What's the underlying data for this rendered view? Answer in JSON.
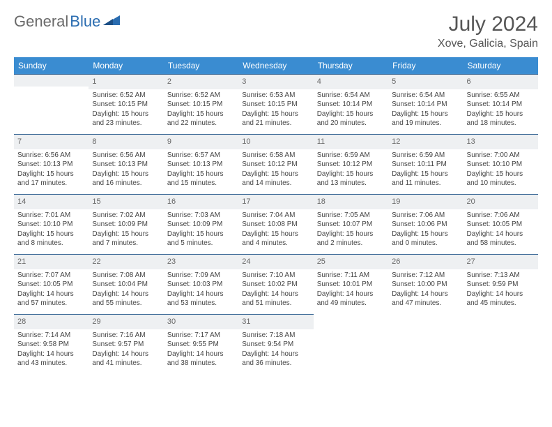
{
  "logo": {
    "text1": "General",
    "text2": "Blue",
    "brand_color": "#2a6cb0",
    "text_color": "#6a6a6a"
  },
  "title": "July 2024",
  "location": "Xove, Galicia, Spain",
  "header_bg": "#3a8cd1",
  "header_text_color": "#ffffff",
  "daynum_bg": "#eef0f2",
  "rule_color": "#2d5e8f",
  "weekdays": [
    "Sunday",
    "Monday",
    "Tuesday",
    "Wednesday",
    "Thursday",
    "Friday",
    "Saturday"
  ],
  "weeks": [
    [
      null,
      {
        "n": "1",
        "sr": "6:52 AM",
        "ss": "10:15 PM",
        "dl": "15 hours and 23 minutes."
      },
      {
        "n": "2",
        "sr": "6:52 AM",
        "ss": "10:15 PM",
        "dl": "15 hours and 22 minutes."
      },
      {
        "n": "3",
        "sr": "6:53 AM",
        "ss": "10:15 PM",
        "dl": "15 hours and 21 minutes."
      },
      {
        "n": "4",
        "sr": "6:54 AM",
        "ss": "10:14 PM",
        "dl": "15 hours and 20 minutes."
      },
      {
        "n": "5",
        "sr": "6:54 AM",
        "ss": "10:14 PM",
        "dl": "15 hours and 19 minutes."
      },
      {
        "n": "6",
        "sr": "6:55 AM",
        "ss": "10:14 PM",
        "dl": "15 hours and 18 minutes."
      }
    ],
    [
      {
        "n": "7",
        "sr": "6:56 AM",
        "ss": "10:13 PM",
        "dl": "15 hours and 17 minutes."
      },
      {
        "n": "8",
        "sr": "6:56 AM",
        "ss": "10:13 PM",
        "dl": "15 hours and 16 minutes."
      },
      {
        "n": "9",
        "sr": "6:57 AM",
        "ss": "10:13 PM",
        "dl": "15 hours and 15 minutes."
      },
      {
        "n": "10",
        "sr": "6:58 AM",
        "ss": "10:12 PM",
        "dl": "15 hours and 14 minutes."
      },
      {
        "n": "11",
        "sr": "6:59 AM",
        "ss": "10:12 PM",
        "dl": "15 hours and 13 minutes."
      },
      {
        "n": "12",
        "sr": "6:59 AM",
        "ss": "10:11 PM",
        "dl": "15 hours and 11 minutes."
      },
      {
        "n": "13",
        "sr": "7:00 AM",
        "ss": "10:10 PM",
        "dl": "15 hours and 10 minutes."
      }
    ],
    [
      {
        "n": "14",
        "sr": "7:01 AM",
        "ss": "10:10 PM",
        "dl": "15 hours and 8 minutes."
      },
      {
        "n": "15",
        "sr": "7:02 AM",
        "ss": "10:09 PM",
        "dl": "15 hours and 7 minutes."
      },
      {
        "n": "16",
        "sr": "7:03 AM",
        "ss": "10:09 PM",
        "dl": "15 hours and 5 minutes."
      },
      {
        "n": "17",
        "sr": "7:04 AM",
        "ss": "10:08 PM",
        "dl": "15 hours and 4 minutes."
      },
      {
        "n": "18",
        "sr": "7:05 AM",
        "ss": "10:07 PM",
        "dl": "15 hours and 2 minutes."
      },
      {
        "n": "19",
        "sr": "7:06 AM",
        "ss": "10:06 PM",
        "dl": "15 hours and 0 minutes."
      },
      {
        "n": "20",
        "sr": "7:06 AM",
        "ss": "10:05 PM",
        "dl": "14 hours and 58 minutes."
      }
    ],
    [
      {
        "n": "21",
        "sr": "7:07 AM",
        "ss": "10:05 PM",
        "dl": "14 hours and 57 minutes."
      },
      {
        "n": "22",
        "sr": "7:08 AM",
        "ss": "10:04 PM",
        "dl": "14 hours and 55 minutes."
      },
      {
        "n": "23",
        "sr": "7:09 AM",
        "ss": "10:03 PM",
        "dl": "14 hours and 53 minutes."
      },
      {
        "n": "24",
        "sr": "7:10 AM",
        "ss": "10:02 PM",
        "dl": "14 hours and 51 minutes."
      },
      {
        "n": "25",
        "sr": "7:11 AM",
        "ss": "10:01 PM",
        "dl": "14 hours and 49 minutes."
      },
      {
        "n": "26",
        "sr": "7:12 AM",
        "ss": "10:00 PM",
        "dl": "14 hours and 47 minutes."
      },
      {
        "n": "27",
        "sr": "7:13 AM",
        "ss": "9:59 PM",
        "dl": "14 hours and 45 minutes."
      }
    ],
    [
      {
        "n": "28",
        "sr": "7:14 AM",
        "ss": "9:58 PM",
        "dl": "14 hours and 43 minutes."
      },
      {
        "n": "29",
        "sr": "7:16 AM",
        "ss": "9:57 PM",
        "dl": "14 hours and 41 minutes."
      },
      {
        "n": "30",
        "sr": "7:17 AM",
        "ss": "9:55 PM",
        "dl": "14 hours and 38 minutes."
      },
      {
        "n": "31",
        "sr": "7:18 AM",
        "ss": "9:54 PM",
        "dl": "14 hours and 36 minutes."
      },
      null,
      null,
      null
    ]
  ],
  "labels": {
    "sunrise": "Sunrise:",
    "sunset": "Sunset:",
    "daylight": "Daylight:"
  }
}
